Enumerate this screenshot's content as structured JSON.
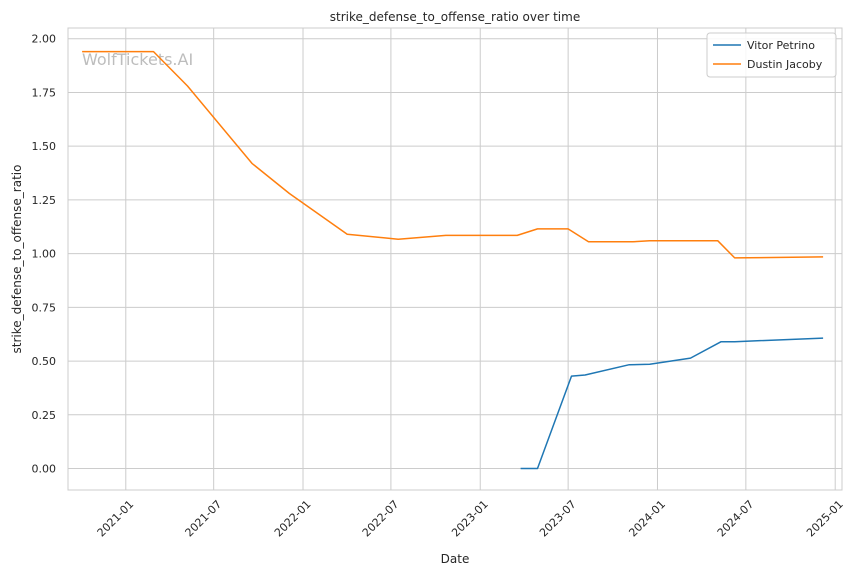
{
  "watermark": "WolfTickets.AI",
  "chart_data": {
    "type": "line",
    "title": "strike_defense_to_offense_ratio over time",
    "xlabel": "Date",
    "ylabel": "strike_defense_to_offense_ratio",
    "xlim": [
      "2020-09-04",
      "2025-01-15"
    ],
    "ylim": [
      -0.1,
      2.05
    ],
    "x_ticks": [
      "2021-01",
      "2021-07",
      "2022-01",
      "2022-07",
      "2023-01",
      "2023-07",
      "2024-01",
      "2024-07",
      "2025-01"
    ],
    "y_ticks": [
      "0.00",
      "0.25",
      "0.50",
      "0.75",
      "1.00",
      "1.25",
      "1.50",
      "1.75",
      "2.00"
    ],
    "grid": true,
    "legend_position": "top-right",
    "series": [
      {
        "name": "Vitor Petrino",
        "color": "#1f77b4",
        "points": [
          {
            "x": "2023-03-25",
            "y": 0.0
          },
          {
            "x": "2023-04-29",
            "y": 0.0
          },
          {
            "x": "2023-07-08",
            "y": 0.43
          },
          {
            "x": "2023-08-05",
            "y": 0.435
          },
          {
            "x": "2023-11-04",
            "y": 0.483
          },
          {
            "x": "2023-12-16",
            "y": 0.485
          },
          {
            "x": "2024-03-09",
            "y": 0.514
          },
          {
            "x": "2024-05-11",
            "y": 0.59
          },
          {
            "x": "2024-06-08",
            "y": 0.59
          },
          {
            "x": "2024-12-07",
            "y": 0.607
          }
        ]
      },
      {
        "name": "Dustin Jacoby",
        "color": "#ff7f0e",
        "points": [
          {
            "x": "2020-10-03",
            "y": 1.94
          },
          {
            "x": "2021-02-27",
            "y": 1.94
          },
          {
            "x": "2021-05-08",
            "y": 1.78
          },
          {
            "x": "2021-09-18",
            "y": 1.42
          },
          {
            "x": "2021-12-04",
            "y": 1.28
          },
          {
            "x": "2022-04-02",
            "y": 1.09
          },
          {
            "x": "2022-07-16",
            "y": 1.067
          },
          {
            "x": "2022-10-22",
            "y": 1.085
          },
          {
            "x": "2023-03-18",
            "y": 1.085
          },
          {
            "x": "2023-04-29",
            "y": 1.115
          },
          {
            "x": "2023-07-01",
            "y": 1.115
          },
          {
            "x": "2023-08-12",
            "y": 1.055
          },
          {
            "x": "2023-11-11",
            "y": 1.055
          },
          {
            "x": "2023-12-16",
            "y": 1.06
          },
          {
            "x": "2024-05-04",
            "y": 1.06
          },
          {
            "x": "2024-06-08",
            "y": 0.98
          },
          {
            "x": "2024-12-07",
            "y": 0.985
          }
        ]
      }
    ]
  }
}
